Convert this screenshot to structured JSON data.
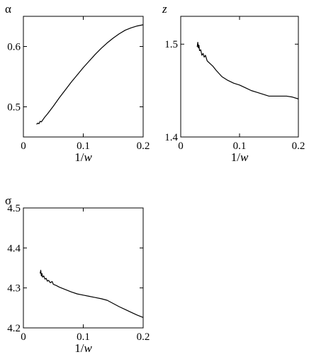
{
  "chart_data": [
    {
      "type": "line",
      "ylabel": "α",
      "xlabel": "1/w",
      "xlim": [
        0,
        0.2
      ],
      "ylim": [
        0.45,
        0.65
      ],
      "x_ticks": [
        0,
        0.1,
        0.2
      ],
      "x_tick_labels": [
        "0",
        "0.1",
        "0.2"
      ],
      "y_ticks": [
        0.5,
        0.6
      ],
      "y_tick_labels": [
        "0.5",
        "0.6"
      ],
      "series": [
        {
          "x": [
            0.022,
            0.024,
            0.026,
            0.028,
            0.03,
            0.035,
            0.04,
            0.05,
            0.06,
            0.07,
            0.08,
            0.09,
            0.1,
            0.11,
            0.12,
            0.13,
            0.14,
            0.15,
            0.16,
            0.17,
            0.18,
            0.19,
            0.2
          ],
          "y": [
            0.471,
            0.473,
            0.472,
            0.476,
            0.475,
            0.482,
            0.488,
            0.501,
            0.515,
            0.528,
            0.541,
            0.553,
            0.565,
            0.576,
            0.587,
            0.597,
            0.606,
            0.614,
            0.621,
            0.627,
            0.631,
            0.634,
            0.636
          ]
        }
      ]
    },
    {
      "type": "line",
      "ylabel": "z",
      "xlabel": "1/w",
      "xlim": [
        0,
        0.2
      ],
      "ylim": [
        1.4,
        1.53
      ],
      "x_ticks": [
        0,
        0.1,
        0.2
      ],
      "x_tick_labels": [
        "0",
        "0.1",
        "0.2"
      ],
      "y_ticks": [
        1.4,
        1.5
      ],
      "y_tick_labels": [
        "1.4",
        "1.5"
      ],
      "series": [
        {
          "x": [
            0.028,
            0.029,
            0.03,
            0.031,
            0.032,
            0.034,
            0.036,
            0.038,
            0.04,
            0.042,
            0.045,
            0.05,
            0.055,
            0.06,
            0.07,
            0.08,
            0.09,
            0.1,
            0.11,
            0.12,
            0.13,
            0.14,
            0.15,
            0.16,
            0.17,
            0.18,
            0.19,
            0.2
          ],
          "y": [
            1.497,
            1.502,
            1.496,
            1.499,
            1.493,
            1.494,
            1.488,
            1.49,
            1.486,
            1.488,
            1.482,
            1.479,
            1.476,
            1.472,
            1.465,
            1.461,
            1.458,
            1.456,
            1.453,
            1.45,
            1.448,
            1.446,
            1.444,
            1.444,
            1.444,
            1.444,
            1.443,
            1.441
          ]
        }
      ]
    },
    {
      "type": "line",
      "ylabel": "σ",
      "xlabel": "1/w",
      "xlim": [
        0,
        0.2
      ],
      "ylim": [
        4.2,
        4.5
      ],
      "x_ticks": [
        0,
        0.1,
        0.2
      ],
      "x_tick_labels": [
        "0",
        "0.1",
        "0.2"
      ],
      "y_ticks": [
        4.2,
        4.3,
        4.4,
        4.5
      ],
      "y_tick_labels": [
        "4.2",
        "4.3",
        "4.4",
        "4.5"
      ],
      "series": [
        {
          "x": [
            0.028,
            0.029,
            0.03,
            0.031,
            0.032,
            0.034,
            0.036,
            0.038,
            0.04,
            0.042,
            0.045,
            0.048,
            0.05,
            0.055,
            0.06,
            0.07,
            0.08,
            0.09,
            0.1,
            0.11,
            0.12,
            0.13,
            0.14,
            0.15,
            0.16,
            0.17,
            0.18,
            0.19,
            0.2
          ],
          "y": [
            4.336,
            4.344,
            4.33,
            4.336,
            4.327,
            4.33,
            4.322,
            4.324,
            4.317,
            4.319,
            4.313,
            4.316,
            4.309,
            4.306,
            4.302,
            4.296,
            4.29,
            4.285,
            4.282,
            4.279,
            4.276,
            4.273,
            4.269,
            4.261,
            4.253,
            4.246,
            4.239,
            4.232,
            4.226
          ]
        }
      ]
    }
  ]
}
